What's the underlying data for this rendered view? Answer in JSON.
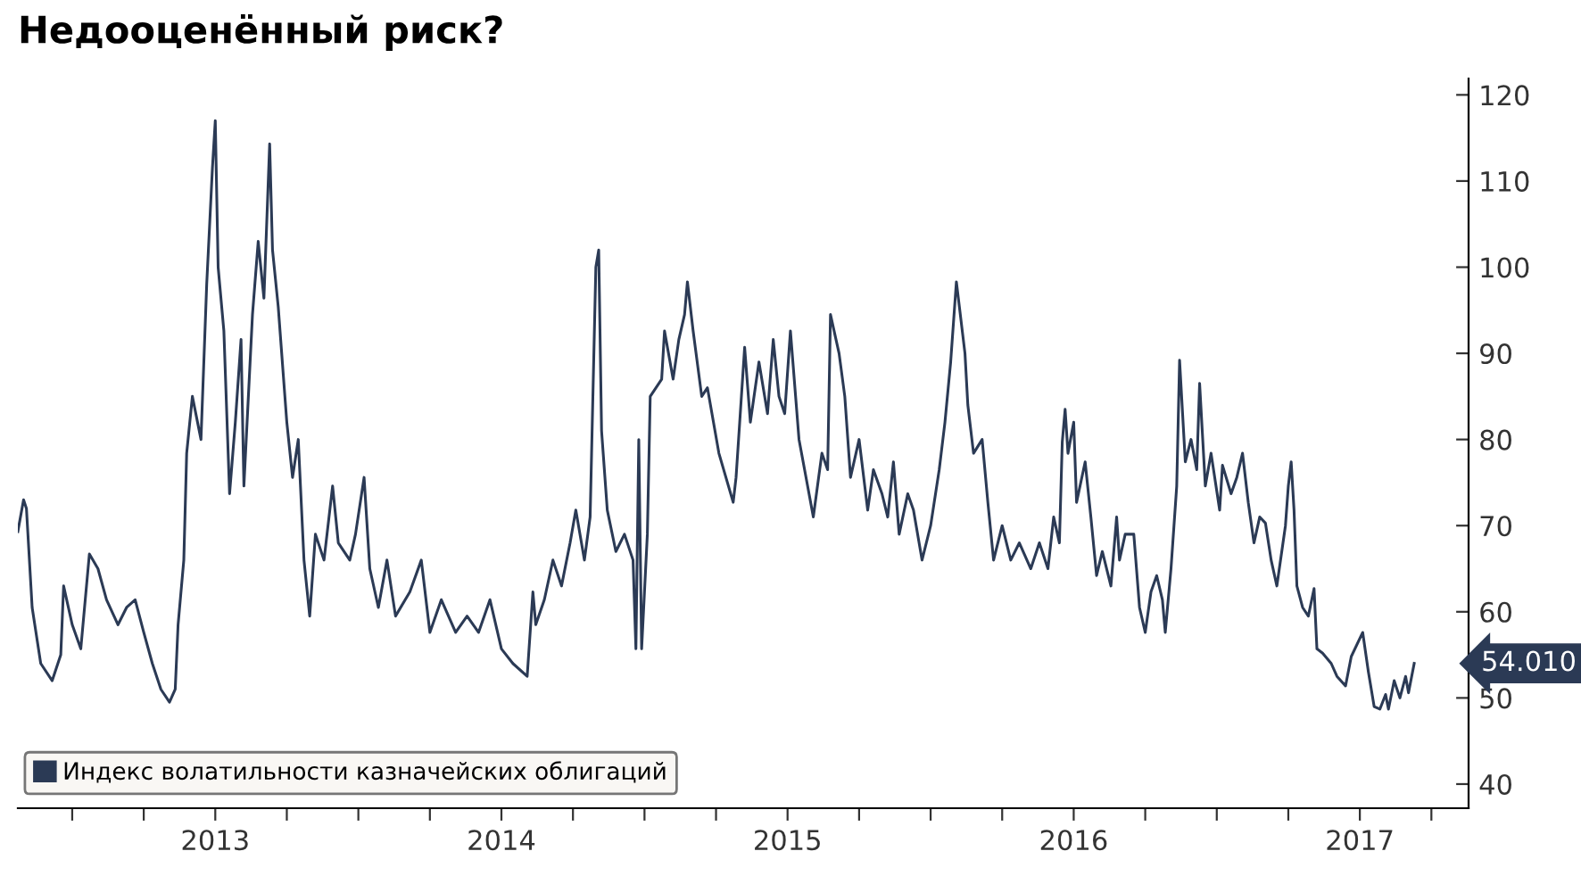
{
  "chart_data": {
    "type": "line",
    "title": "Недооценённый риск?",
    "x": [
      2012.81,
      2012.83,
      2012.84,
      2012.86,
      2012.89,
      2012.93,
      2012.96,
      2012.97,
      2013.0,
      2013.03,
      2013.06,
      2013.09,
      2013.12,
      2013.16,
      2013.19,
      2013.22,
      2013.25,
      2013.28,
      2013.31,
      2013.34,
      2013.36,
      2013.37,
      2013.39,
      2013.4,
      2013.42,
      2013.45,
      2013.47,
      2013.49,
      2013.5,
      2013.51,
      2013.53,
      2013.55,
      2013.57,
      2013.59,
      2013.6,
      2013.63,
      2013.65,
      2013.67,
      2013.69,
      2013.7,
      2013.72,
      2013.75,
      2013.77,
      2013.79,
      2013.81,
      2013.83,
      2013.85,
      2013.88,
      2013.91,
      2013.93,
      2013.97,
      2013.99,
      2014.02,
      2014.04,
      2014.07,
      2014.1,
      2014.13,
      2014.18,
      2014.22,
      2014.25,
      2014.29,
      2014.34,
      2014.38,
      2014.42,
      2014.46,
      2014.5,
      2014.54,
      2014.59,
      2014.61,
      2014.62,
      2014.65,
      2014.68,
      2014.71,
      2014.74,
      2014.76,
      2014.79,
      2014.81,
      2014.83,
      2014.84,
      2014.85,
      2014.87,
      2014.9,
      2014.93,
      2014.96,
      2014.97,
      2014.98,
      2014.99,
      2015.01,
      2015.02,
      2015.06,
      2015.07,
      2015.1,
      2015.12,
      2015.14,
      2015.15,
      2015.17,
      2015.2,
      2015.22,
      2015.26,
      2015.31,
      2015.32,
      2015.35,
      2015.37,
      2015.4,
      2015.43,
      2015.45,
      2015.47,
      2015.49,
      2015.51,
      2015.54,
      2015.57,
      2015.59,
      2015.62,
      2015.64,
      2015.65,
      2015.68,
      2015.7,
      2015.72,
      2015.75,
      2015.78,
      2015.8,
      2015.83,
      2015.85,
      2015.87,
      2015.89,
      2015.92,
      2015.94,
      2015.97,
      2016.0,
      2016.03,
      2016.05,
      2016.07,
      2016.09,
      2016.12,
      2016.13,
      2016.15,
      2016.18,
      2016.2,
      2016.22,
      2016.25,
      2016.28,
      2016.31,
      2016.35,
      2016.38,
      2016.41,
      2016.43,
      2016.45,
      2016.46,
      2016.47,
      2016.48,
      2016.5,
      2016.51,
      2016.54,
      2016.56,
      2016.58,
      2016.6,
      2016.63,
      2016.65,
      2016.66,
      2016.68,
      2016.71,
      2016.73,
      2016.75,
      2016.77,
      2016.79,
      2016.81,
      2016.82,
      2016.84,
      2016.86,
      2016.87,
      2016.89,
      2016.91,
      2016.93,
      2016.94,
      2016.96,
      2016.98,
      2017.01,
      2017.02,
      2017.05,
      2017.07,
      2017.09,
      2017.11,
      2017.13,
      2017.15,
      2017.17,
      2017.19,
      2017.21,
      2017.24,
      2017.25,
      2017.26,
      2017.27,
      2017.28,
      2017.3,
      2017.32,
      2017.34,
      2017.35,
      2017.37,
      2017.4,
      2017.42,
      2017.45,
      2017.47,
      2017.51,
      2017.53,
      2017.55,
      2017.57,
      2017.59,
      2017.6,
      2017.62,
      2017.64,
      2017.66,
      2017.67,
      2017.69
    ],
    "series": [
      {
        "name": "Индекс волатильности казначейских облигаций",
        "color": "#2b3a55",
        "values": [
          69.3,
          73,
          72,
          60.5,
          54,
          52,
          55,
          63,
          58.5,
          55.7,
          66.7,
          65,
          61.4,
          58.5,
          60.5,
          61.4,
          57.6,
          54,
          51,
          49.5,
          51,
          58.5,
          66,
          78.4,
          85,
          80,
          98,
          111.5,
          117,
          100,
          92.6,
          73.7,
          82,
          91.6,
          74.6,
          94.5,
          103,
          96.4,
          114.3,
          102,
          95.4,
          82,
          75.6,
          80,
          66,
          59.5,
          69,
          66,
          74.6,
          68,
          66,
          69,
          75.6,
          65,
          60.5,
          66,
          59.5,
          62.3,
          66,
          57.6,
          61.4,
          57.6,
          59.5,
          57.6,
          61.4,
          55.7,
          54,
          52.5,
          62.3,
          58.5,
          61.4,
          66,
          63,
          68,
          71.8,
          66,
          71,
          100,
          102,
          81,
          71.8,
          67,
          69,
          66,
          55.7,
          80,
          55.7,
          69,
          85,
          87,
          92.6,
          87,
          91.6,
          94.5,
          98.3,
          92.6,
          85,
          86,
          78.4,
          72.7,
          75.6,
          90.7,
          82,
          89,
          83,
          91.6,
          85,
          83,
          92.6,
          80,
          74.6,
          71,
          78.4,
          76.5,
          94.5,
          90,
          85,
          75.6,
          80,
          71.8,
          76.5,
          73.7,
          71,
          77.4,
          69,
          73.7,
          71.8,
          66,
          70,
          76.5,
          82,
          89,
          98.3,
          90,
          84,
          78.4,
          80,
          72.7,
          66,
          70,
          66,
          68,
          65,
          68,
          65,
          71,
          68,
          79.7,
          83.5,
          78.4,
          82,
          72.7,
          77.4,
          71,
          64.2,
          67,
          63,
          71,
          66,
          69,
          69,
          60.5,
          57.6,
          62.3,
          64.2,
          61.4,
          57.6,
          65,
          74.6,
          89.2,
          77.4,
          80,
          76.5,
          86.5,
          74.6,
          78.4,
          71.8,
          77,
          73.7,
          75.6,
          78.4,
          72.7,
          68,
          71,
          70.3,
          66,
          63,
          70,
          74.6,
          77.4,
          71.8,
          63,
          60.5,
          59.5,
          62.7,
          55.7,
          55.2,
          54,
          52.5,
          51.4,
          54.8,
          57.6,
          53,
          49,
          48.7,
          50.4,
          48.7,
          52,
          50,
          52.5,
          50.6,
          54.01
        ]
      }
    ],
    "xlim": [
      2012.81,
      2017.88
    ],
    "xticks": [
      {
        "value": 2013.0,
        "label": null
      },
      {
        "value": 2013.25,
        "label": null
      },
      {
        "value": 2013.5,
        "label": "2013"
      },
      {
        "value": 2013.75,
        "label": null
      },
      {
        "value": 2014.0,
        "label": null
      },
      {
        "value": 2014.25,
        "label": null
      },
      {
        "value": 2014.5,
        "label": "2014"
      },
      {
        "value": 2014.75,
        "label": null
      },
      {
        "value": 2015.0,
        "label": null
      },
      {
        "value": 2015.25,
        "label": null
      },
      {
        "value": 2015.5,
        "label": "2015"
      },
      {
        "value": 2015.75,
        "label": null
      },
      {
        "value": 2016.0,
        "label": null
      },
      {
        "value": 2016.25,
        "label": null
      },
      {
        "value": 2016.5,
        "label": "2016"
      },
      {
        "value": 2016.75,
        "label": null
      },
      {
        "value": 2017.0,
        "label": null
      },
      {
        "value": 2017.25,
        "label": null
      },
      {
        "value": 2017.5,
        "label": "2017"
      },
      {
        "value": 2017.75,
        "label": null
      }
    ],
    "ylim": [
      37.2,
      121.9
    ],
    "yticks": [
      40,
      50,
      60,
      70,
      80,
      90,
      100,
      110,
      120
    ],
    "annotations": [
      {
        "text": "54.010",
        "x": 2017.69,
        "y": 54.01
      }
    ],
    "legend": "bottom left",
    "grid": false
  }
}
